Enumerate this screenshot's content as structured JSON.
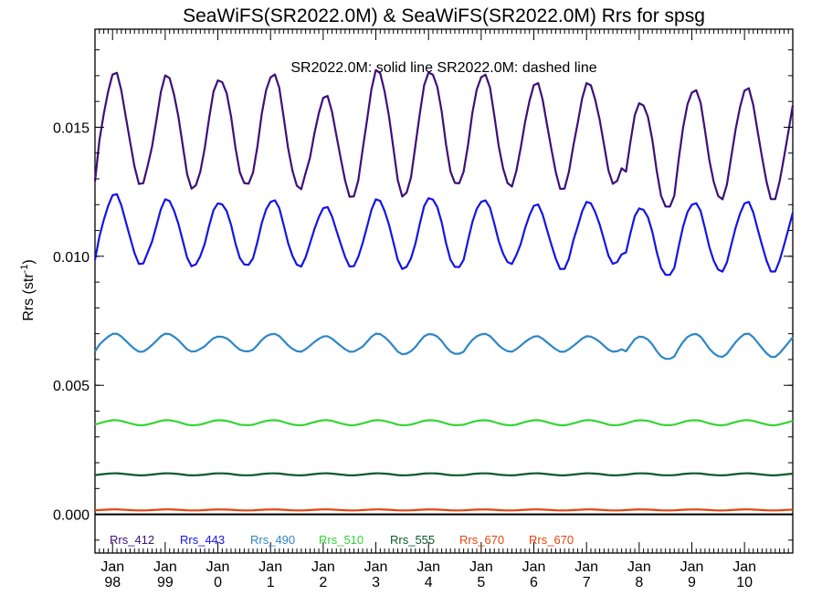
{
  "colors": {
    "Rrs_412": "#3d0f7a",
    "Rrs_443": "#1414e6",
    "Rrs_490": "#2d86c6",
    "Rrs_510": "#33d633",
    "Rrs_555": "#0b5a2a",
    "Rrs_670": "#e2450f"
  },
  "chart_data": {
    "type": "line",
    "title": "SeaWiFS(SR2022.0M) & SeaWiFS(SR2022.0M)  Rrs for spsg",
    "annotation": "SR2022.0M: solid line   SR2022.0M: dashed line",
    "ylabel": "Rrs (str",
    "ylabel_sup": "-1",
    "ylabel_close": ")",
    "xlabel": "",
    "ylim": [
      -0.0015,
      0.0188
    ],
    "yticks": [
      "0.000",
      "0.005",
      "0.010",
      "0.015"
    ],
    "x_start": "1997-09",
    "x_end": "2010-12",
    "xticks": [
      {
        "month": "Jan",
        "year": "98"
      },
      {
        "month": "Jan",
        "year": "99"
      },
      {
        "month": "Jan",
        "year": "0"
      },
      {
        "month": "Jan",
        "year": "1"
      },
      {
        "month": "Jan",
        "year": "2"
      },
      {
        "month": "Jan",
        "year": "3"
      },
      {
        "month": "Jan",
        "year": "4"
      },
      {
        "month": "Jan",
        "year": "5"
      },
      {
        "month": "Jan",
        "year": "6"
      },
      {
        "month": "Jan",
        "year": "7"
      },
      {
        "month": "Jan",
        "year": "8"
      },
      {
        "month": "Jan",
        "year": "9"
      },
      {
        "month": "Jan",
        "year": "10"
      }
    ],
    "series": [
      {
        "name": "Rrs_412",
        "style": "solid",
        "seasonal_mean": 0.0147,
        "seasonal_amplitude": 0.0022,
        "annual_peaks": [
          0.0166,
          0.0171,
          0.017,
          0.0169,
          0.0171,
          0.0162,
          0.0172,
          0.0172,
          0.0171,
          0.0167,
          0.0167,
          0.016,
          0.0165
        ],
        "annual_troughs": [
          0.0123,
          0.0128,
          0.0126,
          0.0127,
          0.0126,
          0.0123,
          0.0123,
          0.0127,
          0.0127,
          0.0126,
          0.0128,
          0.0118,
          0.0122
        ]
      },
      {
        "name": "Rrs_443",
        "style": "solid",
        "seasonal_mean": 0.0108,
        "seasonal_amplitude": 0.00135,
        "annual_peaks": [
          0.0121,
          0.0124,
          0.0122,
          0.0121,
          0.0122,
          0.0119,
          0.0122,
          0.0123,
          0.0122,
          0.012,
          0.0121,
          0.0119,
          0.0121
        ],
        "annual_troughs": [
          0.0095,
          0.0097,
          0.0096,
          0.0096,
          0.0096,
          0.0096,
          0.0095,
          0.0095,
          0.0097,
          0.0095,
          0.0097,
          0.0092,
          0.0094
        ]
      },
      {
        "name": "Rrs_490",
        "style": "solid",
        "seasonal_mean": 0.00665,
        "seasonal_amplitude": 0.0004,
        "annual_peaks": [
          0.007,
          0.007,
          0.007,
          0.0069,
          0.007,
          0.0069,
          0.007,
          0.007,
          0.007,
          0.0069,
          0.0069,
          0.0069,
          0.007
        ],
        "annual_troughs": [
          0.0062,
          0.0063,
          0.0063,
          0.0063,
          0.0063,
          0.0063,
          0.0062,
          0.0062,
          0.0063,
          0.0063,
          0.0063,
          0.006,
          0.0061
        ]
      },
      {
        "name": "Rrs_510",
        "style": "solid",
        "seasonal_mean": 0.00355,
        "seasonal_amplitude": 0.0001
      },
      {
        "name": "Rrs_555",
        "style": "solid",
        "seasonal_mean": 0.00155,
        "seasonal_amplitude": 4e-05
      },
      {
        "name": "Rrs_670",
        "style": "solid",
        "seasonal_mean": 0.00017,
        "seasonal_amplitude": 2e-05
      },
      {
        "name": "Rrs_670",
        "style": "dashed",
        "seasonal_mean": 0.00017,
        "seasonal_amplitude": 2e-05
      }
    ],
    "zero_line": 0.0,
    "grid": false,
    "legend_position": "bottom"
  }
}
